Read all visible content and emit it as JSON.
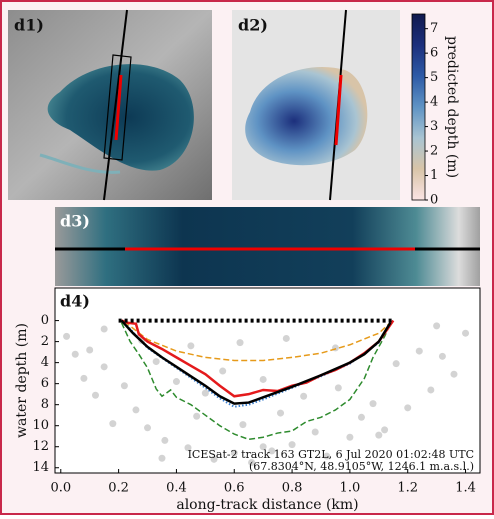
{
  "panel_labels": [
    "d1)",
    "d2)",
    "d3)"
  ],
  "chart_data": [
    {
      "type": "colorbar",
      "label": "predicted depth (m)",
      "clim": [
        0,
        7.6
      ],
      "ticks": [
        0,
        1,
        2,
        3,
        4,
        5,
        6,
        7
      ],
      "colors": [
        "#fbe4e4",
        "#d8c4a8",
        "#a9c4d2",
        "#5f93c4",
        "#2e5aa6",
        "#1c2f7c",
        "#111a4e"
      ]
    },
    {
      "type": "line",
      "title": "d4)",
      "xlabel": "along-track distance (km)",
      "ylabel": "water depth (m)",
      "xlim": [
        -0.02,
        1.45
      ],
      "ylim": [
        -3.1,
        14.5
      ],
      "y_inverted": true,
      "xticks": [
        {
          "value": 0,
          "label": "0.0"
        },
        0.2,
        0.4,
        0.6,
        0.8,
        {
          "value": 1,
          "label": "1.0"
        },
        1.2,
        1.4
      ],
      "yticks": [
        0,
        2,
        4,
        6,
        8,
        10,
        12,
        14
      ],
      "annotations": [
        "ICESat-2 track 163 GT2L, 6 Jul 2020 01:02:48 UTC",
        "(67.8304°N, 48.9105°W, 1246.1 m.a.s.l.)"
      ],
      "series": [
        {
          "type": "scatter",
          "color": "#c8c8c8",
          "x": [
            0.02,
            0.05,
            0.08,
            0.1,
            0.12,
            0.15,
            0.18,
            0.22,
            0.26,
            0.3,
            0.33,
            0.36,
            0.4,
            0.44,
            0.47,
            0.5,
            0.53,
            0.56,
            0.6,
            0.63,
            0.66,
            0.7,
            0.73,
            0.76,
            0.8,
            0.84,
            0.88,
            0.92,
            0.96,
            1.0,
            1.04,
            1.08,
            1.12,
            1.16,
            1.2,
            1.24,
            1.28,
            1.32,
            1.36,
            1.4,
            0.28,
            0.45,
            0.62,
            0.78,
            0.95,
            1.1,
            0.15,
            1.3,
            0.35,
            0.7
          ],
          "values": [
            1.5,
            3.2,
            5.5,
            2.8,
            7.1,
            4.4,
            9.8,
            6.2,
            8.5,
            10.2,
            3.9,
            11.4,
            5.8,
            12.1,
            9.1,
            6.9,
            13.2,
            4.8,
            12.6,
            9.9,
            13.5,
            5.6,
            12.4,
            8.8,
            11.8,
            7.2,
            10.6,
            12.9,
            6.4,
            11.1,
            9.2,
            7.9,
            10.4,
            4.1,
            8.3,
            2.9,
            6.6,
            3.4,
            5.1,
            1.2,
            1.9,
            2.4,
            2.1,
            1.7,
            2.6,
            10.9,
            0.8,
            0.5,
            13.1,
            12.0
          ]
        },
        {
          "type": "line",
          "style": "dashed",
          "color": "#e69a1a",
          "x": [
            0.22,
            0.3,
            0.4,
            0.5,
            0.6,
            0.7,
            0.8,
            0.9,
            1.0,
            1.1,
            1.14
          ],
          "values": [
            0.1,
            1.8,
            2.9,
            3.5,
            3.8,
            3.8,
            3.5,
            3.1,
            2.3,
            1.2,
            0.2
          ]
        },
        {
          "type": "line",
          "style": "dashed",
          "color": "#2e8b2e",
          "x": [
            0.21,
            0.24,
            0.27,
            0.3,
            0.33,
            0.35,
            0.38,
            0.4,
            0.45,
            0.5,
            0.55,
            0.6,
            0.65,
            0.7,
            0.75,
            0.8,
            0.85,
            0.9,
            0.95,
            1.0,
            1.05,
            1.08,
            1.12,
            1.14
          ],
          "values": [
            0.2,
            2,
            3.2,
            4.5,
            6.5,
            7.2,
            6.6,
            7.3,
            8.0,
            9.0,
            10.0,
            10.8,
            11.3,
            11.1,
            10.7,
            10.5,
            9.6,
            9.2,
            8.5,
            7.5,
            5.5,
            3.5,
            1.5,
            0.3
          ]
        },
        {
          "type": "line",
          "style": "dotted",
          "color": "#3a7fd0",
          "x": [
            0.22,
            0.3,
            0.4,
            0.5,
            0.55,
            0.6,
            0.65,
            0.7,
            0.8,
            0.9,
            1.0,
            1.1,
            1.14
          ],
          "values": [
            0.2,
            2.6,
            4.5,
            6.4,
            7.4,
            8.2,
            8.0,
            7.5,
            6.4,
            5.3,
            4.1,
            2.1,
            0.3
          ]
        },
        {
          "type": "line",
          "style": "solid",
          "color": "#e41a1c",
          "x": [
            0.21,
            0.23,
            0.26,
            0.27,
            0.3,
            0.35,
            0.4,
            0.45,
            0.5,
            0.55,
            0.6,
            0.65,
            0.7,
            0.75,
            0.8,
            0.85,
            0.9,
            0.95,
            1.0,
            1.05,
            1.1,
            1.15
          ],
          "values": [
            0,
            0.2,
            0.3,
            1.3,
            2.0,
            2.7,
            3.5,
            4.3,
            5.1,
            6.2,
            7.2,
            7.0,
            6.6,
            6.7,
            6.2,
            5.9,
            5.2,
            4.7,
            4.0,
            3.1,
            2.0,
            0
          ]
        },
        {
          "type": "line",
          "style": "solid",
          "color": "#000000",
          "x": [
            0.21,
            0.25,
            0.3,
            0.35,
            0.4,
            0.45,
            0.5,
            0.55,
            0.6,
            0.65,
            0.7,
            0.8,
            0.9,
            1.0,
            1.05,
            1.1,
            1.14
          ],
          "values": [
            0,
            1.2,
            2.5,
            3.5,
            4.4,
            5.3,
            6.2,
            7.2,
            7.9,
            7.8,
            7.3,
            6.3,
            5.2,
            4.0,
            3.2,
            2.0,
            0.2
          ]
        },
        {
          "type": "line",
          "style": "surface",
          "color": "#000000",
          "x": [
            0.2,
            1.15
          ],
          "values": [
            0,
            0
          ]
        }
      ]
    }
  ]
}
